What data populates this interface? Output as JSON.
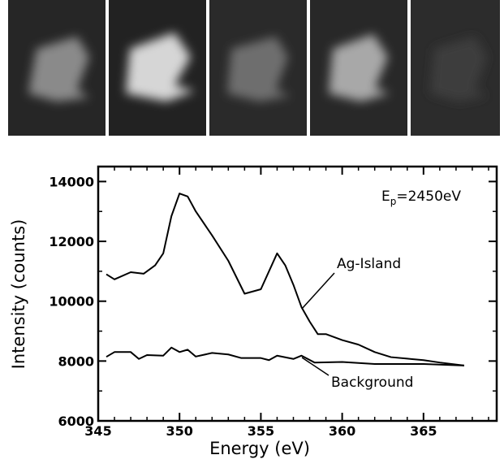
{
  "chart_data": {
    "type": "line",
    "xlabel": "Energy (eV)",
    "ylabel": "Intensity (counts)",
    "annotation": {
      "base": "E",
      "subscript": "p",
      "text": "=2450eV"
    },
    "series": [
      {
        "name": "Ag-Island",
        "color": "#000000",
        "x": [
          345.5,
          346,
          347,
          347.8,
          348.5,
          349,
          349.5,
          350,
          350.5,
          351,
          352,
          353,
          354,
          355,
          356,
          356.5,
          357,
          357.5,
          358,
          358.5,
          359,
          360,
          361,
          362,
          363,
          364,
          365,
          366,
          367.5
        ],
        "values": [
          10900,
          10730,
          10970,
          10920,
          11200,
          11600,
          12840,
          13600,
          13500,
          13000,
          12200,
          11350,
          10250,
          10400,
          11600,
          11200,
          10550,
          9800,
          9320,
          8900,
          8900,
          8700,
          8550,
          8300,
          8130,
          8080,
          8030,
          7950,
          7850
        ]
      },
      {
        "name": "Background",
        "color": "#000000",
        "x": [
          345.5,
          346,
          347,
          347.5,
          348,
          349,
          349.5,
          350,
          350.5,
          351,
          352,
          353,
          353.8,
          355,
          355.5,
          356,
          357,
          357.5,
          358.3,
          360,
          362,
          365,
          367.5
        ],
        "values": [
          8140,
          8300,
          8300,
          8070,
          8200,
          8180,
          8450,
          8300,
          8380,
          8150,
          8270,
          8220,
          8100,
          8100,
          8030,
          8180,
          8070,
          8180,
          7950,
          7970,
          7900,
          7900,
          7850
        ]
      }
    ],
    "xlim": [
      345,
      369.5
    ],
    "ylim": [
      6000,
      14500
    ],
    "xticks": [
      345,
      350,
      355,
      360,
      365
    ],
    "yticks": [
      6000,
      8000,
      10000,
      12000,
      14000
    ],
    "xticks_minor": [
      346,
      347,
      348,
      349,
      351,
      352,
      353,
      354,
      356,
      357,
      358,
      359,
      361,
      362,
      363,
      364,
      366,
      367,
      368,
      369
    ],
    "yticks_minor": [
      7000,
      9000,
      11000,
      13000
    ],
    "grid": false
  }
}
